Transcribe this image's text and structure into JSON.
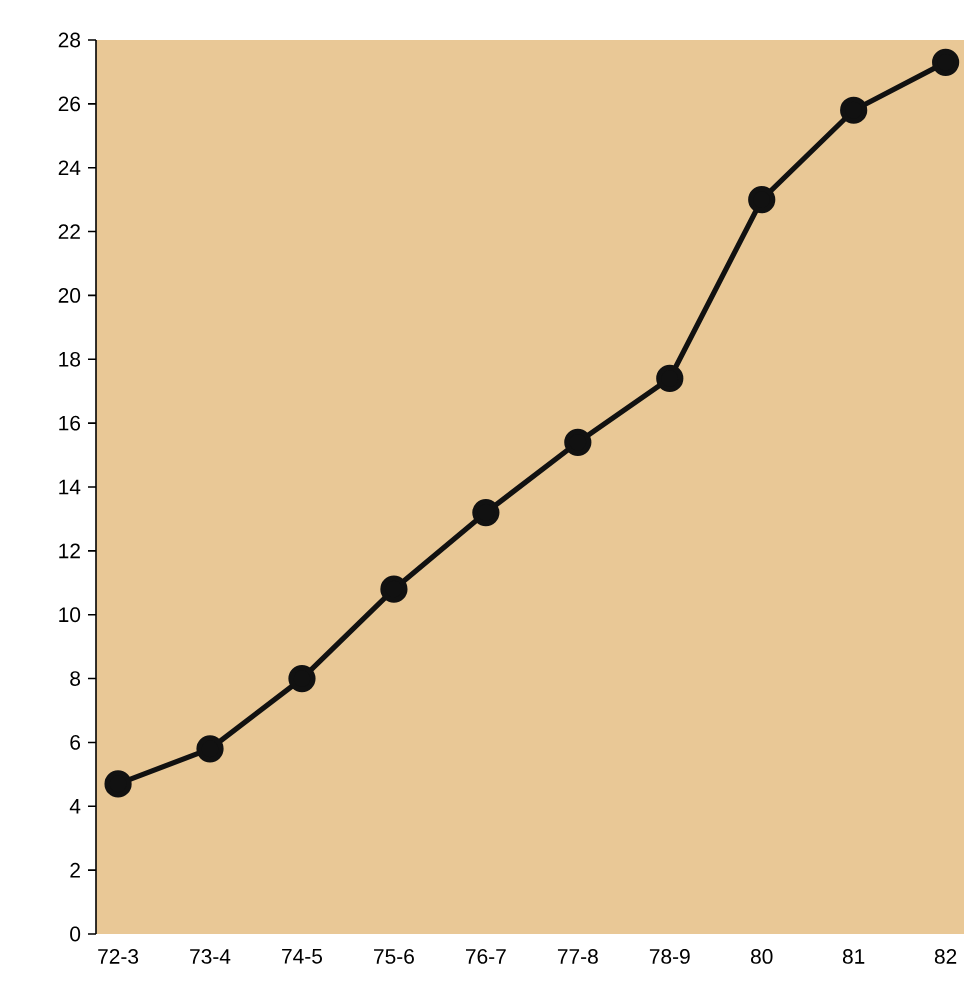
{
  "chart_data": {
    "type": "line",
    "categories": [
      "72-3",
      "73-4",
      "74-5",
      "75-6",
      "76-7",
      "77-8",
      "78-9",
      "80",
      "81",
      "82"
    ],
    "values": [
      4.7,
      5.8,
      8.0,
      10.8,
      13.2,
      15.4,
      17.4,
      23.0,
      25.8,
      27.3
    ],
    "color": "#111111",
    "marker": "circle",
    "line_style": "solid",
    "grid": false,
    "ylim": [
      0,
      28
    ],
    "yticks": [
      0,
      2,
      4,
      6,
      8,
      10,
      12,
      14,
      16,
      18,
      20,
      22,
      24,
      26,
      28
    ]
  }
}
